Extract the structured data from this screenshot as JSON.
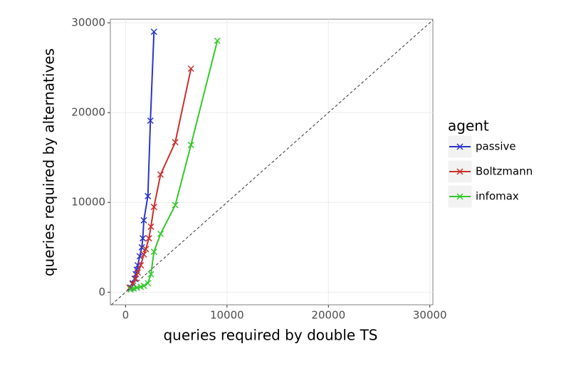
{
  "chart_data": {
    "type": "line",
    "x_label": "queries required by double TS",
    "y_label": "queries required by alternatives",
    "legend_title": "agent",
    "legend": "right",
    "grid": true,
    "xlim": [
      -1500,
      30300
    ],
    "ylim": [
      -1400,
      30400
    ],
    "xticks": [
      0,
      10000,
      20000,
      30000
    ],
    "yticks": [
      0,
      10000,
      20000,
      30000
    ],
    "series": [
      {
        "name": "passive",
        "color": "#2b35c9",
        "x": [
          500,
          700,
          900,
          1000,
          1100,
          1200,
          1400,
          1600,
          1700,
          1800,
          2200,
          2450,
          2800
        ],
        "values": [
          500,
          1000,
          1500,
          2000,
          2500,
          3000,
          4000,
          5000,
          6000,
          8000,
          10700,
          19100,
          29000
        ]
      },
      {
        "name": "Boltzmann",
        "color": "#c9302c",
        "x": [
          400,
          700,
          1000,
          1200,
          1500,
          1800,
          2000,
          2300,
          2500,
          2800,
          3450,
          4900,
          6450
        ],
        "values": [
          500,
          900,
          1500,
          2200,
          3000,
          4200,
          4800,
          6000,
          7300,
          9500,
          13100,
          16700,
          24900
        ]
      },
      {
        "name": "infomax",
        "color": "#33c82b",
        "x": [
          500,
          800,
          1100,
          1500,
          1800,
          2200,
          2500,
          2800,
          3450,
          4900,
          6450,
          9050
        ],
        "values": [
          300,
          400,
          500,
          600,
          700,
          1000,
          2000,
          4500,
          6500,
          9700,
          16400,
          28000
        ]
      }
    ]
  }
}
